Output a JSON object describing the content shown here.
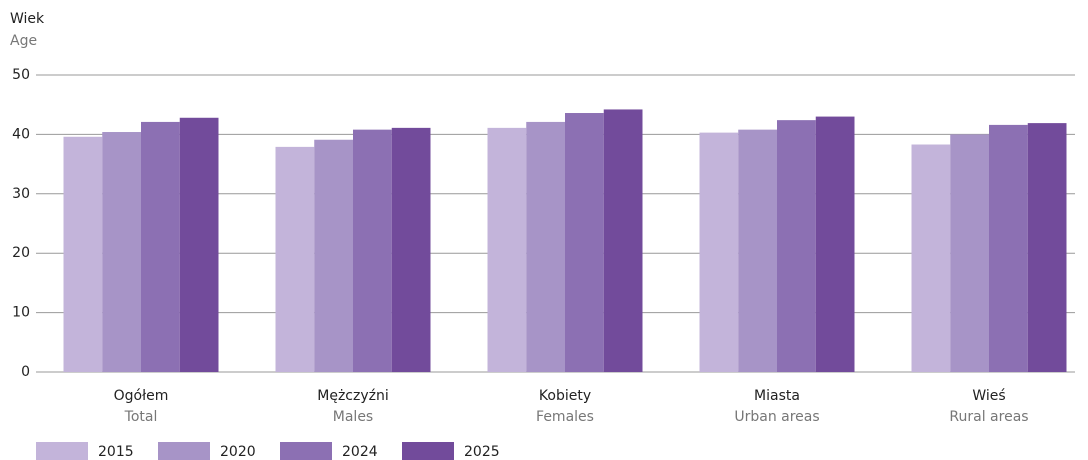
{
  "chart_data": {
    "type": "bar",
    "y_label": "Wiek",
    "y_label_en": "Age",
    "categories": [
      "Ogółem",
      "Mężczyźni",
      "Kobiety",
      "Miasta",
      "Wieś"
    ],
    "categories_en": [
      "Total",
      "Males",
      "Females",
      "Urban areas",
      "Rural areas"
    ],
    "series": [
      {
        "name": "2015",
        "color": "#c3b4da",
        "values": [
          39.6,
          37.9,
          41.1,
          40.3,
          38.3
        ]
      },
      {
        "name": "2020",
        "color": "#a794c7",
        "values": [
          40.4,
          39.1,
          42.1,
          40.8,
          40.0
        ]
      },
      {
        "name": "2024",
        "color": "#8c70b3",
        "values": [
          42.1,
          40.8,
          43.6,
          42.4,
          41.6
        ]
      },
      {
        "name": "2025",
        "color": "#724b9b",
        "values": [
          42.8,
          41.1,
          44.2,
          43.0,
          41.9
        ]
      }
    ],
    "ylim": [
      0,
      50
    ],
    "yticks": [
      0,
      10,
      20,
      30,
      40,
      50
    ],
    "grid": true,
    "legend": "bottom"
  }
}
